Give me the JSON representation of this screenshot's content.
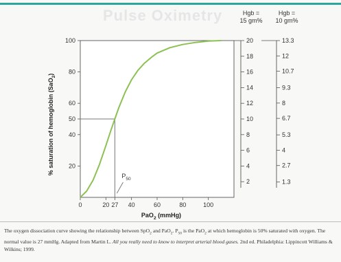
{
  "chart_data": {
    "type": "line",
    "x_label": "PaO",
    "x_label_sub": "2",
    "x_label_unit": " (mmHg)",
    "y_label": "% saturation of hemoglobin (SaO",
    "y_label_sub": "2",
    "y_label_end": ")",
    "xlim": [
      0,
      120
    ],
    "ylim": [
      0,
      100
    ],
    "x_ticks": [
      "0",
      "20",
      "27",
      "40",
      "60",
      "80",
      "100"
    ],
    "x_tick_values": [
      0,
      20,
      27,
      40,
      60,
      80,
      100
    ],
    "y_ticks": [
      "20",
      "40",
      "50",
      "60",
      "80",
      "100"
    ],
    "y_tick_values": [
      20,
      40,
      50,
      60,
      80,
      100
    ],
    "series": [
      {
        "color": "#8cc152",
        "x": [
          0,
          5,
          10,
          15,
          20,
          24,
          27,
          30,
          35,
          40,
          45,
          50,
          55,
          60,
          70,
          80,
          90,
          100,
          110
        ],
        "y": [
          0,
          4,
          11,
          21,
          33,
          43,
          50,
          57,
          67,
          75,
          81,
          85.5,
          89,
          92,
          95.5,
          97.5,
          98.8,
          99.7,
          100
        ]
      }
    ],
    "p50_marker": {
      "x": 27,
      "y": 50,
      "label": "P",
      "label_sub": "50"
    },
    "right_axis_1": {
      "header": [
        "Hgb =",
        "15 gm%"
      ],
      "ticks": [
        "20",
        "18",
        "16",
        "14",
        "12",
        "10",
        "8",
        "6",
        "4",
        "2"
      ],
      "tick_values": [
        20,
        18,
        16,
        14,
        12,
        10,
        8,
        6,
        4,
        2
      ]
    },
    "right_axis_2": {
      "header": [
        "Hgb =",
        "10 gm%"
      ],
      "ticks": [
        "13.3",
        "12",
        "10.7",
        "9.3",
        "8",
        "6.7",
        "5.3",
        "4",
        "2.7",
        "1.3"
      ],
      "tick_values": [
        13.3,
        12,
        10.7,
        9.3,
        8,
        6.7,
        5.3,
        4,
        2.7,
        1.3
      ]
    }
  },
  "background_title": "Pulse Oximetry",
  "caption": {
    "part1": "The oxygen dissociation curve showing the relationship between SpO",
    "sub1": "2",
    "part2": " and PaO",
    "sub2": "2",
    "part3": ". P",
    "sub3": "50",
    "part4": " is the PaO",
    "sub4": "2",
    "part5": " at which hemoglobin is 50% saturated with oxygen. The normal value is 27 mmHg. Adapted from Martin L. ",
    "italic": "All you really need to know to interpret arterial blood gases.",
    "part6": " 2nd ed. Philadelphia: Lippincott Williams & Wilkins; 1999."
  }
}
